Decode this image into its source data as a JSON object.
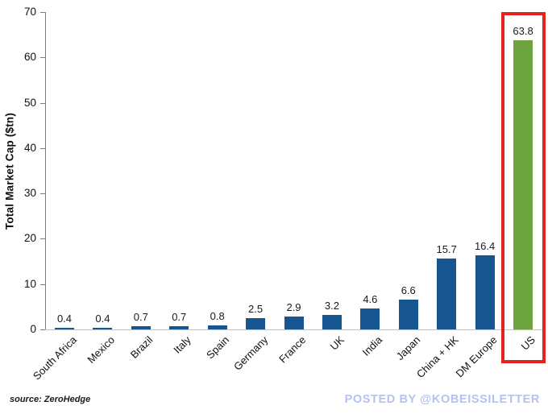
{
  "page": {
    "source_note": "source: ZeroHedge",
    "watermark": "POSTED BY @KOBEISSILETTER"
  },
  "colors": {
    "bar_blue": "#16558F",
    "bar_green": "#6DA33D",
    "highlight_red": "#E2231E",
    "watermark_blue": "#B5C2EE",
    "axis_gray": "#7F7F7F",
    "baseline_gray": "#C3C3C3"
  },
  "chart_data": {
    "type": "bar",
    "title": "",
    "xlabel": "",
    "ylabel": "Total Market Cap ($tn)",
    "ylim": [
      0,
      70
    ],
    "yticks": [
      0,
      10,
      20,
      30,
      40,
      50,
      60,
      70
    ],
    "grid": false,
    "legend": false,
    "categories": [
      "South Africa",
      "Mexico",
      "Brazil",
      "Italy",
      "Spain",
      "Germany",
      "France",
      "UK",
      "India",
      "Japan",
      "China + HK",
      "DM Europe",
      "US"
    ],
    "values": [
      0.4,
      0.4,
      0.7,
      0.7,
      0.8,
      2.5,
      2.9,
      3.2,
      4.6,
      6.6,
      15.7,
      16.4,
      63.8
    ],
    "value_labels": [
      "0.4",
      "0.4",
      "0.7",
      "0.7",
      "0.8",
      "2.5",
      "2.9",
      "3.2",
      "4.6",
      "6.6",
      "15.7",
      "16.4",
      "63.8"
    ],
    "highlighted_category": "US",
    "annotations": "US bar outlined with red rectangle"
  }
}
